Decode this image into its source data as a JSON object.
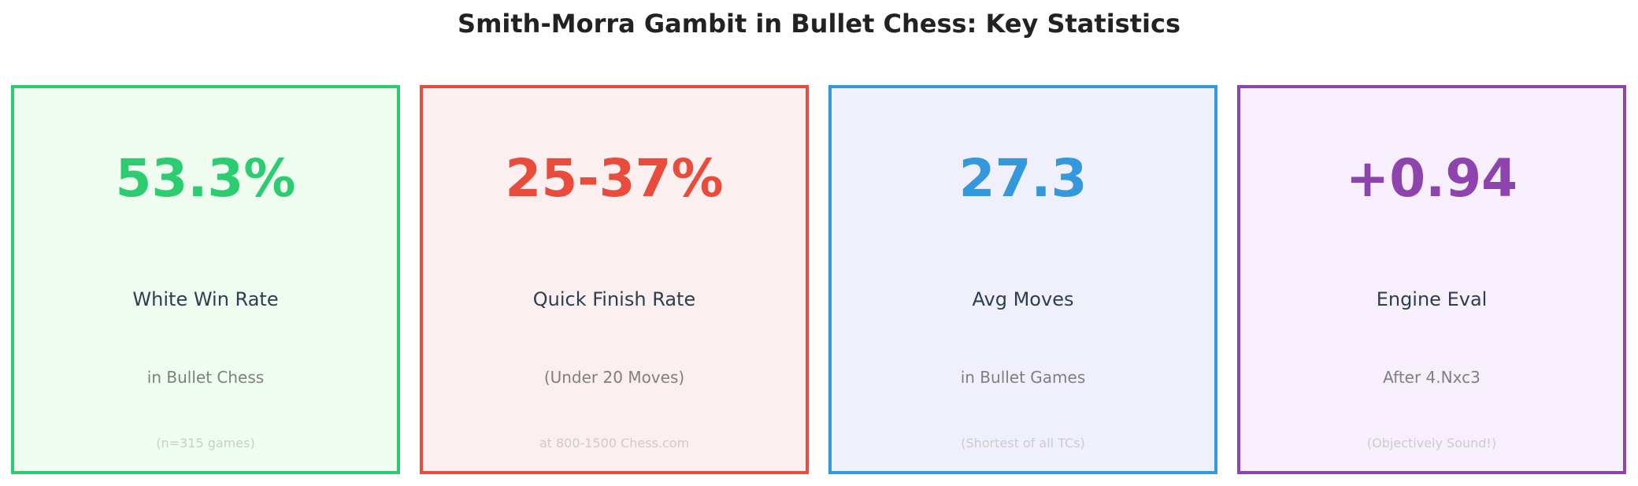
{
  "title": "Smith-Morra Gambit in Bullet Chess: Key Statistics",
  "chart_data": {
    "type": "table",
    "title": "Smith-Morra Gambit in Bullet Chess: Key Statistics",
    "cards": [
      {
        "value": "53.3%",
        "label": "White Win Rate",
        "sublabel": "in Bullet Chess",
        "note": "(n=315 games)",
        "color": "#2ecc71",
        "background": "#effdf1"
      },
      {
        "value": "25-37%",
        "label": "Quick Finish Rate",
        "sublabel": "(Under 20 Moves)",
        "note": "at 800-1500 Chess.com",
        "color": "#e74c3c",
        "background": "#fcefef"
      },
      {
        "value": "27.3",
        "label": "Avg Moves",
        "sublabel": "in Bullet Games",
        "note": "(Shortest of all TCs)",
        "color": "#3498db",
        "background": "#f0f0fc"
      },
      {
        "value": "+0.94",
        "label": "Engine Eval",
        "sublabel": "After 4.Nxc3",
        "note": "(Objectively Sound!)",
        "color": "#8e44ad",
        "background": "#f7effc"
      }
    ]
  }
}
